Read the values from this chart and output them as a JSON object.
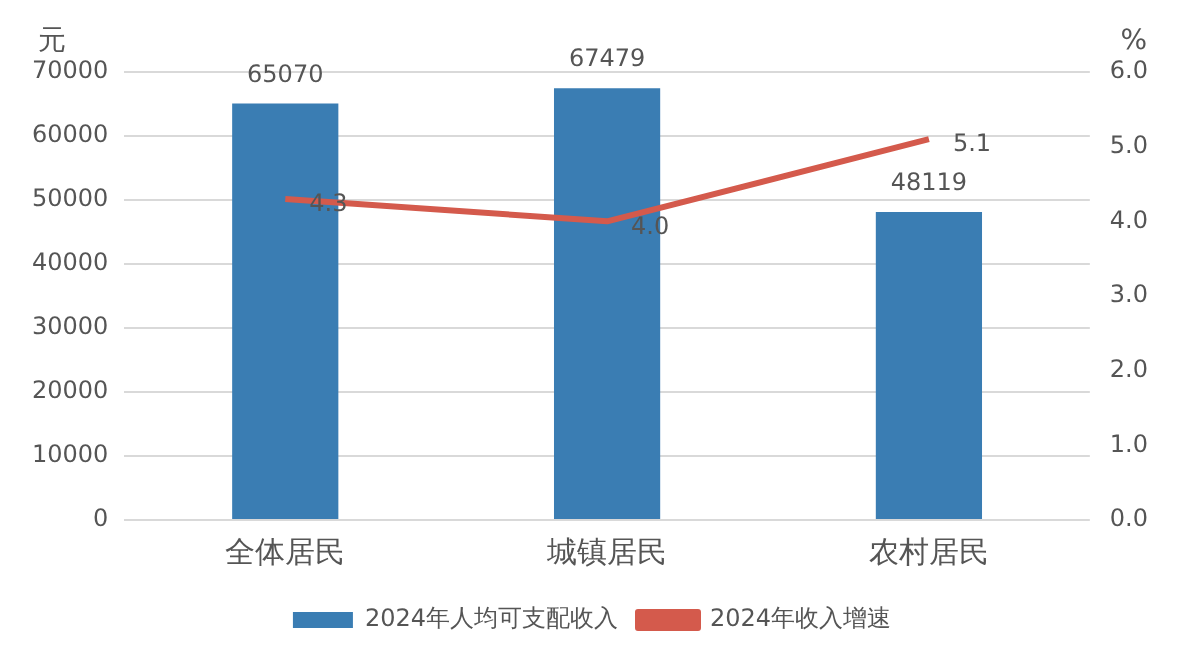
{
  "chart_data": {
    "type": "bar",
    "categories": [
      "全体居民",
      "城镇居民",
      "农村居民"
    ],
    "series": [
      {
        "name": "2024年人均可支配收入",
        "color": "#3a7db3",
        "values": [
          65070,
          67479,
          48119
        ]
      },
      {
        "name": "2024年收入增速",
        "type": "line",
        "axis": "y2",
        "color": "#d45a4c",
        "values": [
          4.3,
          4.0,
          5.1
        ],
        "value_labels": [
          "4.3",
          "4.0",
          "5.1"
        ]
      }
    ],
    "ylabel": "元",
    "y2label": "%",
    "ylim": [
      0,
      70000
    ],
    "yticks": [
      0,
      10000,
      20000,
      30000,
      40000,
      50000,
      60000,
      70000
    ],
    "y2lim": [
      0,
      6
    ],
    "y2ticks": [
      {
        "value": 0,
        "label": "0.0"
      },
      {
        "value": 1,
        "label": "1.0"
      },
      {
        "value": 2,
        "label": "2.0"
      },
      {
        "value": 3,
        "label": "3.0"
      },
      {
        "value": 4,
        "label": "4.0"
      },
      {
        "value": 5,
        "label": "5.0"
      },
      {
        "value": 6,
        "label": "6.0"
      }
    ],
    "grid": "y",
    "legend": "bottom",
    "data_labels": true,
    "marker": "none"
  }
}
